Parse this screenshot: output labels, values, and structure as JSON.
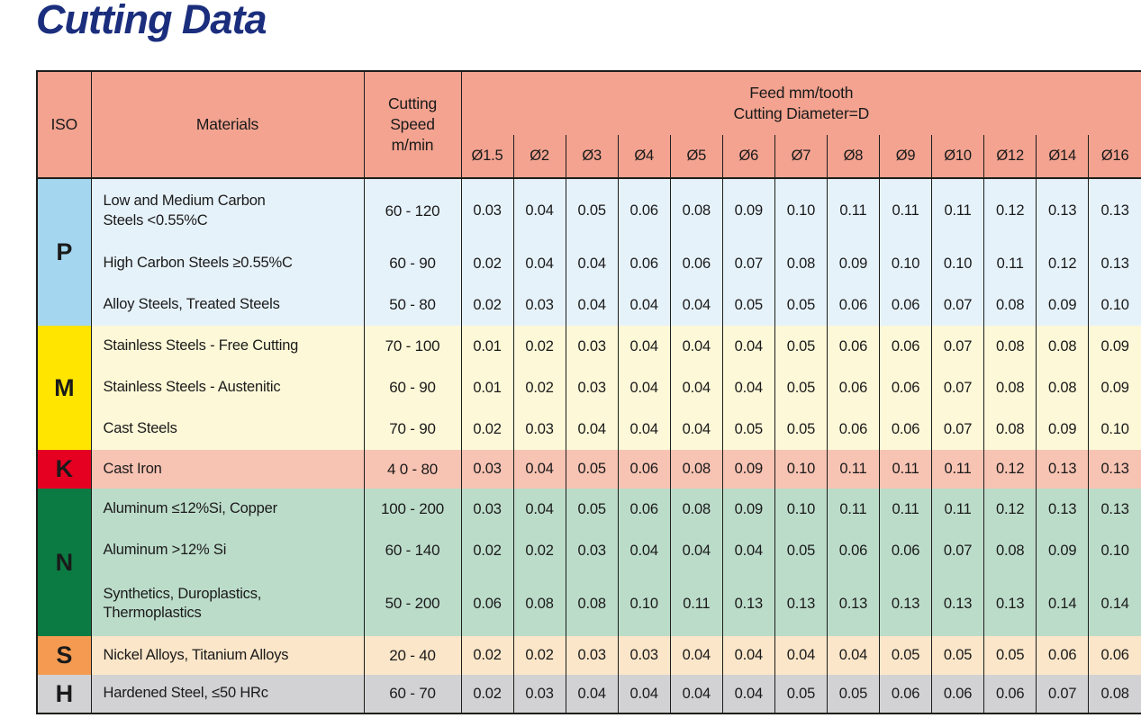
{
  "title": "Cutting Data",
  "title_color": "#1b2e7d",
  "header_bg": "#f3a390",
  "border_color": "#1d1d1b",
  "table": {
    "headers": {
      "iso": "ISO",
      "materials": "Materials",
      "cutting_speed_lines": [
        "Cutting",
        "Speed",
        "m/min"
      ],
      "feed_lines": [
        "Feed mm/tooth",
        "Cutting Diameter=D"
      ],
      "diameters": [
        "Ø1.5",
        "Ø2",
        "Ø3",
        "Ø4",
        "Ø5",
        "Ø6",
        "Ø7",
        "Ø8",
        "Ø9",
        "Ø10",
        "Ø12",
        "Ø14",
        "Ø16"
      ]
    },
    "groups": [
      {
        "iso": "P",
        "iso_bg": "#a4d7ef",
        "row_bg": "#e6f2fa",
        "rows": [
          {
            "material": "Low and Medium Carbon\nSteels <0.55%C",
            "speed": "60 - 120",
            "feeds": [
              "0.03",
              "0.04",
              "0.05",
              "0.06",
              "0.08",
              "0.09",
              "0.10",
              "0.11",
              "0.11",
              "0.11",
              "0.12",
              "0.13",
              "0.13"
            ]
          },
          {
            "material": "High Carbon Steels ≥0.55%C",
            "speed": "60 - 90",
            "feeds": [
              "0.02",
              "0.04",
              "0.04",
              "0.06",
              "0.06",
              "0.07",
              "0.08",
              "0.09",
              "0.10",
              "0.10",
              "0.11",
              "0.12",
              "0.13"
            ]
          },
          {
            "material": "Alloy Steels, Treated Steels",
            "speed": "50 - 80",
            "feeds": [
              "0.02",
              "0.03",
              "0.04",
              "0.04",
              "0.04",
              "0.05",
              "0.05",
              "0.06",
              "0.06",
              "0.07",
              "0.08",
              "0.09",
              "0.10"
            ]
          }
        ]
      },
      {
        "iso": "M",
        "iso_bg": "#ffe500",
        "row_bg": "#fdf8d8",
        "rows": [
          {
            "material": "Stainless Steels - Free Cutting",
            "speed": "70 - 100",
            "feeds": [
              "0.01",
              "0.02",
              "0.03",
              "0.04",
              "0.04",
              "0.04",
              "0.05",
              "0.06",
              "0.06",
              "0.07",
              "0.08",
              "0.08",
              "0.09"
            ]
          },
          {
            "material": "Stainless Steels - Austenitic",
            "speed": "60 - 90",
            "feeds": [
              "0.01",
              "0.02",
              "0.03",
              "0.04",
              "0.04",
              "0.04",
              "0.05",
              "0.06",
              "0.06",
              "0.07",
              "0.08",
              "0.08",
              "0.09"
            ]
          },
          {
            "material": "Cast Steels",
            "speed": "70 - 90",
            "feeds": [
              "0.02",
              "0.03",
              "0.04",
              "0.04",
              "0.04",
              "0.05",
              "0.05",
              "0.06",
              "0.06",
              "0.07",
              "0.08",
              "0.09",
              "0.10"
            ]
          }
        ]
      },
      {
        "iso": "K",
        "iso_bg": "#e50021",
        "row_bg": "#f7c3b3",
        "rows": [
          {
            "material": "Cast Iron",
            "speed": "4 0 - 80",
            "feeds": [
              "0.03",
              "0.04",
              "0.05",
              "0.06",
              "0.08",
              "0.09",
              "0.10",
              "0.11",
              "0.11",
              "0.11",
              "0.12",
              "0.13",
              "0.13"
            ]
          }
        ]
      },
      {
        "iso": "N",
        "iso_bg": "#0b7b43",
        "row_bg": "#bcdcca",
        "rows": [
          {
            "material": "Aluminum ≤12%Si, Copper",
            "speed": "100 - 200",
            "feeds": [
              "0.03",
              "0.04",
              "0.05",
              "0.06",
              "0.08",
              "0.09",
              "0.10",
              "0.11",
              "0.11",
              "0.11",
              "0.12",
              "0.13",
              "0.13"
            ]
          },
          {
            "material": "Aluminum >12% Si",
            "speed": "60 - 140",
            "feeds": [
              "0.02",
              "0.02",
              "0.03",
              "0.04",
              "0.04",
              "0.04",
              "0.05",
              "0.06",
              "0.06",
              "0.07",
              "0.08",
              "0.09",
              "0.10"
            ]
          },
          {
            "material": "Synthetics, Duroplastics,\nThermoplastics",
            "speed": "50 - 200",
            "feeds": [
              "0.06",
              "0.08",
              "0.08",
              "0.10",
              "0.11",
              "0.13",
              "0.13",
              "0.13",
              "0.13",
              "0.13",
              "0.13",
              "0.14",
              "0.14"
            ]
          }
        ]
      },
      {
        "iso": "S",
        "iso_bg": "#f49a51",
        "row_bg": "#fbe6c9",
        "rows": [
          {
            "material": "Nickel Alloys, Titanium Alloys",
            "speed": "20 - 40",
            "feeds": [
              "0.02",
              "0.02",
              "0.03",
              "0.03",
              "0.04",
              "0.04",
              "0.04",
              "0.04",
              "0.05",
              "0.05",
              "0.05",
              "0.06",
              "0.06"
            ]
          }
        ]
      },
      {
        "iso": "H",
        "iso_bg": "#d2d2d4",
        "row_bg": "#d2d2d4",
        "rows": [
          {
            "material": "Hardened Steel, ≤50 HRc",
            "speed": "60 - 70",
            "feeds": [
              "0.02",
              "0.03",
              "0.04",
              "0.04",
              "0.04",
              "0.04",
              "0.05",
              "0.05",
              "0.06",
              "0.06",
              "0.06",
              "0.07",
              "0.08"
            ]
          }
        ]
      }
    ]
  }
}
